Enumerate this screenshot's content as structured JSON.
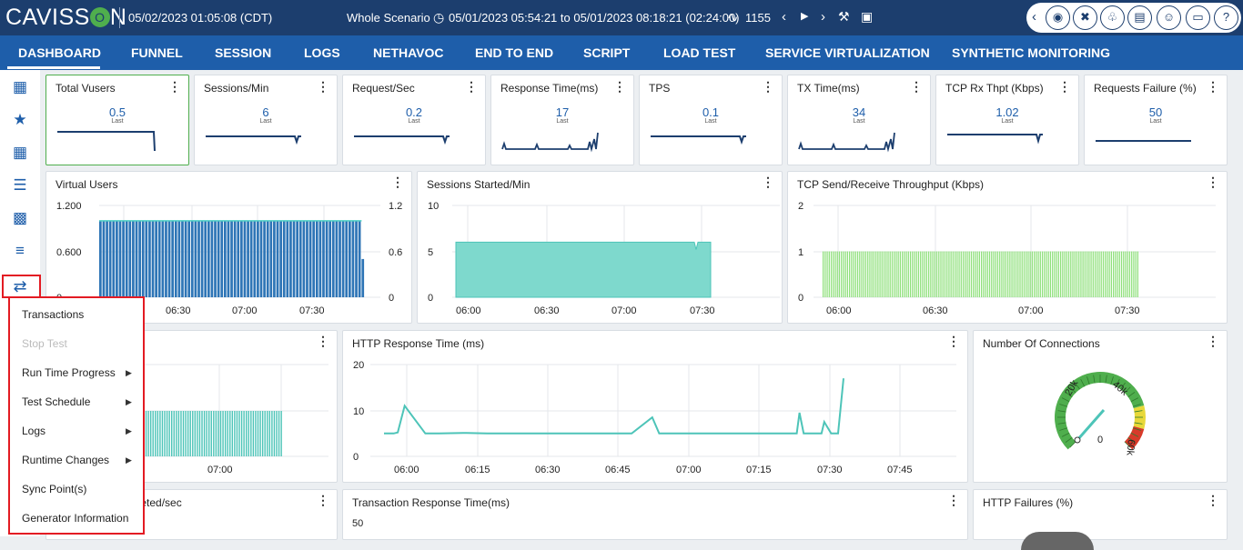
{
  "header": {
    "logo_left": "CAVISS",
    "logo_o": "O",
    "logo_right": "N",
    "datetime": "05/02/2023 01:05:08 (CDT)",
    "scenario": "Whole Scenario",
    "time_range": "05/01/2023 05:54:21 to 05/01/2023 08:18:21 (02:24:00)",
    "vusers_count": "1155",
    "icons": [
      "clock-icon",
      "pulse-icon",
      "chevron-left-icon",
      "play-icon",
      "chevron-right-icon",
      "tools-icon",
      "camera-icon"
    ],
    "right_icons": [
      "chevron-left-icon",
      "paint-bucket-icon",
      "wrench-icon",
      "bell-icon",
      "tablet-icon",
      "user-icon",
      "monitor-icon",
      "help-icon"
    ]
  },
  "nav": {
    "items": [
      "DASHBOARD",
      "FUNNEL",
      "SESSION",
      "LOGS",
      "NETHAVOC",
      "END TO END",
      "SCRIPT",
      "LOAD TEST",
      "SERVICE VIRTUALIZATION",
      "SYNTHETIC MONITORING"
    ],
    "active": "DASHBOARD"
  },
  "sidebar": {
    "icons": [
      "grid-icon",
      "star-icon",
      "calendar-icon",
      "list-icon",
      "bar-chart-icon",
      "tree-icon",
      "transfer-icon"
    ],
    "active": "transfer-icon"
  },
  "kpis": [
    {
      "title": "Total Vusers",
      "value": "0.5",
      "sub": "Last"
    },
    {
      "title": "Sessions/Min",
      "value": "6",
      "sub": "Last"
    },
    {
      "title": "Request/Sec",
      "value": "0.2",
      "sub": "Last"
    },
    {
      "title": "Response Time(ms)",
      "value": "17",
      "sub": "Last"
    },
    {
      "title": "TPS",
      "value": "0.1",
      "sub": "Last"
    },
    {
      "title": "TX Time(ms)",
      "value": "34",
      "sub": "Last"
    },
    {
      "title": "TCP Rx Thpt (Kbps)",
      "value": "1.02",
      "sub": "Last"
    },
    {
      "title": "Requests Failure (%)",
      "value": "50",
      "sub": "Last"
    }
  ],
  "panels": {
    "virtual_users": {
      "title": "Virtual Users"
    },
    "sessions_started": {
      "title": "Sessions Started/Min"
    },
    "tcp_throughput": {
      "title": "TCP Send/Receive Throughput (Kbps)"
    },
    "requests_sec": {
      "title": "ec"
    },
    "http_response": {
      "title": "HTTP Response Time (ms)"
    },
    "connections": {
      "title": "Number Of Connections"
    },
    "completed_sec": {
      "title": "pleted/sec"
    },
    "tx_response": {
      "title": "Transaction Response Time(ms)"
    },
    "http_failures": {
      "title": "HTTP Failures (%)"
    }
  },
  "chart_data": [
    {
      "type": "bar",
      "title": "Virtual Users",
      "x_ticks": [
        "06:30",
        "07:00",
        "07:30"
      ],
      "y_ticks_left": [
        "1.200",
        "0.600",
        "0"
      ],
      "y_ticks_right": [
        "1.2",
        "0.6",
        "0"
      ],
      "ylim": [
        0,
        1.2
      ],
      "series": [
        {
          "values": [
            1,
            1,
            1,
            1,
            1,
            1,
            1,
            1,
            1,
            1,
            1,
            1,
            1,
            1,
            1,
            1,
            1,
            1,
            1,
            1,
            1,
            1,
            1,
            1,
            1,
            1,
            1,
            1,
            1,
            1,
            1,
            1,
            1,
            1,
            1,
            1,
            1,
            1,
            1,
            1,
            1,
            1,
            1,
            1,
            1,
            1,
            1,
            1,
            1,
            1,
            1,
            1,
            1,
            1,
            1,
            1,
            1,
            1,
            1,
            1,
            1,
            1,
            1,
            1,
            1,
            1,
            1,
            1,
            1,
            1,
            1,
            1,
            1,
            1,
            1,
            1,
            1,
            1,
            1,
            1,
            0.5
          ]
        }
      ],
      "colors": {
        "fill": "#2e75b6",
        "line": "#4dd0c4"
      }
    },
    {
      "type": "area",
      "title": "Sessions Started/Min",
      "x_ticks": [
        "06:00",
        "06:30",
        "07:00",
        "07:30"
      ],
      "y_ticks": [
        "10",
        "5",
        "0"
      ],
      "ylim": [
        0,
        10
      ],
      "x": [
        "05:54",
        "06:00",
        "06:30",
        "07:00",
        "07:26",
        "07:27",
        "07:28",
        "07:34"
      ],
      "series": [
        {
          "values": [
            0,
            6,
            6,
            6,
            6,
            5.2,
            6,
            6
          ]
        }
      ],
      "colors": {
        "fill": "#7ed9cd",
        "line": "#4dc4b8"
      }
    },
    {
      "type": "bar",
      "title": "TCP Send/Receive Throughput (Kbps)",
      "x_ticks": [
        "06:00",
        "06:30",
        "07:00",
        "07:30"
      ],
      "y_ticks": [
        "2",
        "1",
        "0"
      ],
      "ylim": [
        0,
        2
      ],
      "series": [
        {
          "values": [
            1,
            1,
            1,
            1,
            1,
            1,
            1,
            1,
            1,
            1,
            1,
            1,
            1,
            1,
            1,
            1,
            1,
            1,
            1,
            1,
            1,
            1,
            1,
            1,
            1,
            1,
            1,
            1,
            1,
            1,
            1,
            1,
            1,
            1,
            1,
            1,
            1,
            1,
            1,
            1,
            1,
            1,
            1,
            1,
            1,
            1,
            1,
            1,
            1,
            1,
            1,
            1,
            1,
            1,
            1,
            1,
            1,
            1,
            1,
            1,
            1,
            1,
            1,
            1,
            1,
            1,
            1,
            1,
            1,
            1,
            1,
            1,
            1,
            1,
            1,
            1,
            1,
            1,
            1,
            1,
            1,
            1,
            1,
            1,
            1,
            1,
            1,
            1,
            1,
            1,
            1,
            1,
            1,
            1,
            1,
            1,
            1,
            1,
            1,
            1,
            1,
            1,
            1,
            1,
            1,
            1,
            1,
            1,
            1,
            1,
            1,
            1,
            1,
            1,
            1,
            1,
            1,
            1,
            1,
            1,
            1,
            1,
            1,
            1,
            1,
            1,
            1,
            1,
            1,
            1,
            1,
            1,
            1,
            1,
            1,
            1,
            1,
            1,
            1,
            1,
            1,
            1,
            1,
            1,
            1,
            1,
            1,
            1,
            1,
            1,
            1,
            1,
            1,
            1,
            1,
            1
          ]
        }
      ],
      "colors": {
        "fill": "#8ee07a"
      }
    },
    {
      "type": "bar",
      "title": "ec",
      "x_ticks": [
        "07:00"
      ],
      "series": [
        {
          "values": [
            1,
            1,
            1,
            1,
            1,
            1,
            1,
            1,
            1,
            1,
            1,
            1,
            1,
            1,
            1,
            1,
            1,
            1,
            1,
            1,
            1,
            1,
            1,
            1,
            1,
            1,
            1,
            1,
            1,
            1,
            1,
            1,
            1,
            1,
            1,
            1,
            1,
            1,
            1,
            1,
            1,
            1,
            1,
            1,
            1,
            1,
            1,
            1,
            1,
            1,
            1,
            1,
            1,
            1,
            1,
            1,
            1,
            1,
            1,
            1,
            1,
            1,
            1,
            1
          ]
        }
      ],
      "colors": {
        "fill": "#4dc4b8"
      }
    },
    {
      "type": "line",
      "title": "HTTP Response Time (ms)",
      "x_ticks": [
        "06:00",
        "06:15",
        "06:30",
        "06:45",
        "07:00",
        "07:15",
        "07:30",
        "07:45"
      ],
      "y_ticks": [
        "20",
        "10",
        "0"
      ],
      "ylim": [
        0,
        20
      ],
      "x": [
        0,
        3,
        5,
        7,
        10,
        15,
        30,
        40,
        60,
        75,
        80,
        85,
        90,
        100,
        120,
        130,
        135,
        140,
        155,
        170,
        180,
        195,
        200,
        205,
        215,
        230,
        250,
        255,
        260,
        270,
        280,
        290,
        300,
        302,
        305,
        310,
        312,
        315,
        318,
        320,
        325,
        330,
        334
      ],
      "series": [
        {
          "values": [
            5,
            5,
            5,
            5,
            5.2,
            11,
            5,
            5,
            5.1,
            5,
            5,
            5,
            5,
            5,
            5,
            5,
            5,
            5,
            5,
            5,
            5,
            8.5,
            5,
            5,
            5,
            5,
            5,
            5,
            5,
            5,
            5,
            5,
            5,
            9.5,
            5,
            5,
            5,
            5,
            5,
            7.5,
            5,
            5,
            17
          ]
        }
      ],
      "colors": {
        "line": "#4dc4b8"
      }
    },
    {
      "type": "gauge",
      "title": "Number Of Connections",
      "ticks": [
        "20k",
        "40k",
        "60k"
      ],
      "value": 0,
      "value_label": "0",
      "colors": {
        "green": "#4fae4d",
        "yellow": "#e8d83a",
        "red": "#d73a2a",
        "needle": "#4dc4b8"
      }
    },
    {
      "type": "line",
      "title": "Transaction Response Time(ms)",
      "y_ticks": [
        "50"
      ]
    }
  ],
  "menu": {
    "items": [
      {
        "label": "Transactions",
        "disabled": false,
        "submenu": false
      },
      {
        "label": "Stop Test",
        "disabled": true,
        "submenu": false
      },
      {
        "label": "Run Time Progress",
        "disabled": false,
        "submenu": true
      },
      {
        "label": "Test Schedule",
        "disabled": false,
        "submenu": true
      },
      {
        "label": "Logs",
        "disabled": false,
        "submenu": true
      },
      {
        "label": "Runtime Changes",
        "disabled": false,
        "submenu": true
      },
      {
        "label": "Sync Point(s)",
        "disabled": false,
        "submenu": false
      },
      {
        "label": "Generator Information",
        "disabled": false,
        "submenu": false
      }
    ]
  }
}
